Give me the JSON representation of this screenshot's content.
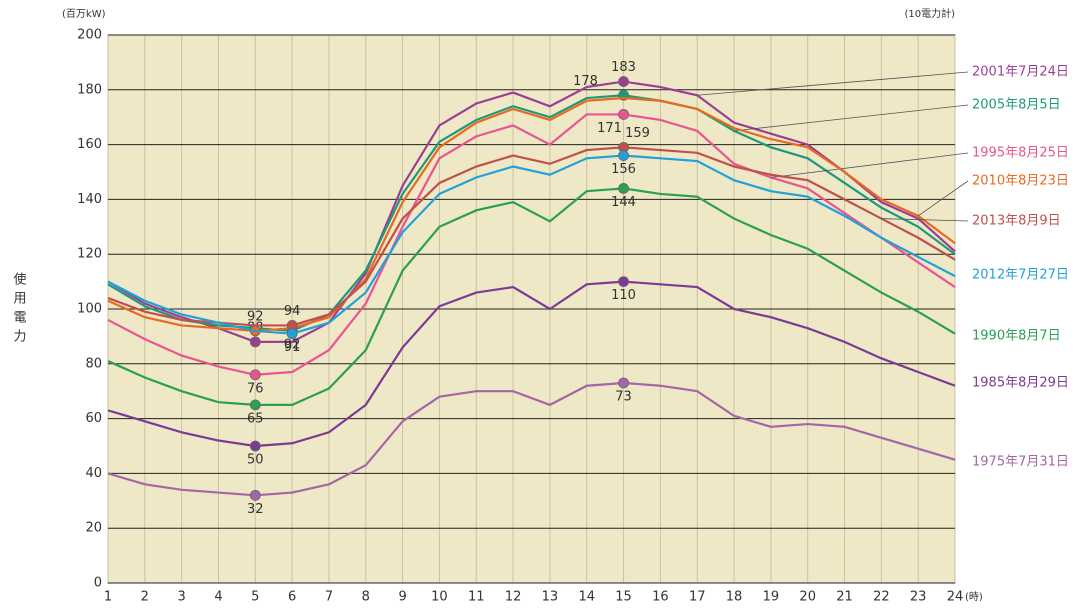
{
  "chart_data": {
    "type": "line",
    "y_unit": "(百万kW)",
    "note": "(10電力計)",
    "x_unit": "(時)",
    "ylabel": "使用電力",
    "x": [
      1,
      2,
      3,
      4,
      5,
      6,
      7,
      8,
      9,
      10,
      11,
      12,
      13,
      14,
      15,
      16,
      17,
      18,
      19,
      20,
      21,
      22,
      23,
      24
    ],
    "xlim": [
      1,
      24
    ],
    "xticks": [
      1,
      2,
      3,
      4,
      5,
      6,
      7,
      8,
      9,
      10,
      11,
      12,
      13,
      14,
      15,
      16,
      17,
      18,
      19,
      20,
      21,
      22,
      23,
      24
    ],
    "ylim": [
      0,
      200
    ],
    "yticks": [
      0,
      20,
      40,
      60,
      80,
      100,
      120,
      140,
      160,
      180,
      200
    ],
    "grid": true,
    "series": [
      {
        "name": "2001年7月24日",
        "color": "#9b3f95",
        "labels_at": [
          4,
          14
        ],
        "values": [
          110,
          102,
          97,
          93,
          88,
          88,
          95,
          113,
          145,
          167,
          175,
          179,
          174,
          181,
          183,
          181,
          178,
          168,
          164,
          160,
          150,
          139,
          133,
          121
        ]
      },
      {
        "name": "2005年8月5日",
        "color": "#1d9a7a",
        "labels_at": [
          5,
          14
        ],
        "values": [
          109,
          101,
          96,
          94,
          93,
          92,
          98,
          114,
          142,
          161,
          169,
          174,
          170,
          177,
          178,
          176,
          173,
          165,
          159,
          155,
          146,
          137,
          130,
          120
        ]
      },
      {
        "name": "1995年8月25日",
        "color": "#e8558f",
        "labels_at": [
          4,
          14
        ],
        "values": [
          96,
          89,
          83,
          79,
          76,
          77,
          85,
          102,
          130,
          155,
          163,
          167,
          160,
          171,
          171,
          169,
          165,
          153,
          148,
          144,
          135,
          126,
          117,
          108
        ]
      },
      {
        "name": "2010年8月23日",
        "color": "#e8691f",
        "labels_at": [
          4
        ],
        "values": [
          103,
          97,
          94,
          93,
          92,
          93,
          97,
          111,
          139,
          159,
          168,
          173,
          169,
          176,
          177,
          176,
          173,
          166,
          162,
          159,
          150,
          140,
          134,
          124
        ]
      },
      {
        "name": "2013年8月9日",
        "color": "#c0504d",
        "labels_at": [
          5,
          14
        ],
        "values": [
          104,
          99,
          96,
          95,
          94,
          94,
          98,
          110,
          133,
          146,
          152,
          156,
          153,
          158,
          159,
          158,
          157,
          152,
          149,
          147,
          140,
          133,
          126,
          118
        ]
      },
      {
        "name": "2012年7月27日",
        "color": "#22a0d9",
        "labels_at": [
          5,
          14
        ],
        "values": [
          110,
          103,
          98,
          95,
          92,
          91,
          95,
          106,
          128,
          142,
          148,
          152,
          149,
          155,
          156,
          155,
          154,
          147,
          143,
          141,
          134,
          126,
          119,
          112
        ]
      },
      {
        "name": "1990年8月7日",
        "color": "#2aa050",
        "labels_at": [
          4,
          14
        ],
        "values": [
          81,
          75,
          70,
          66,
          65,
          65,
          71,
          85,
          114,
          130,
          136,
          139,
          132,
          143,
          144,
          142,
          141,
          133,
          127,
          122,
          114,
          106,
          99,
          91
        ]
      },
      {
        "name": "1985年8月29日",
        "color": "#7b3a94",
        "labels_at": [
          4,
          14
        ],
        "values": [
          63,
          59,
          55,
          52,
          50,
          51,
          55,
          65,
          86,
          101,
          106,
          108,
          100,
          109,
          110,
          109,
          108,
          100,
          97,
          93,
          88,
          82,
          77,
          72
        ]
      },
      {
        "name": "1975年7月31日",
        "color": "#a665a8",
        "labels_at": [
          4,
          14
        ],
        "values": [
          40,
          36,
          34,
          33,
          32,
          33,
          36,
          43,
          59,
          68,
          70,
          70,
          65,
          72,
          73,
          72,
          70,
          61,
          57,
          58,
          57,
          53,
          49,
          45
        ]
      }
    ]
  }
}
